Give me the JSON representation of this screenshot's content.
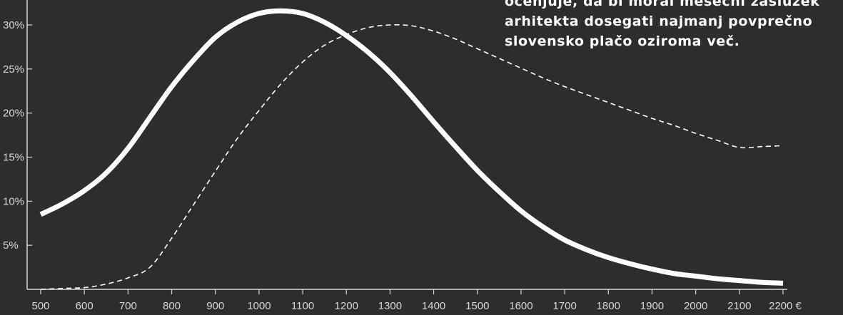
{
  "colors": {
    "background": "#2f2d2b",
    "foreground": "#ffffff",
    "axis": "#d9d7d3"
  },
  "annotation": {
    "lines": [
      "ocenjuje, da bi moral mesečni zaslužek",
      "arhitekta dosegati najmanj povprečno",
      "slovensko plačo oziroma več."
    ]
  },
  "chart_data": {
    "type": "line",
    "x_tick_labels": [
      "500",
      "600",
      "700",
      "800",
      "900",
      "1000",
      "1100",
      "1200",
      "1300",
      "1400",
      "1500",
      "1600",
      "1700",
      "1800",
      "1900",
      "2000",
      "2100",
      "2200 €"
    ],
    "y_tick_labels": [
      "5%",
      "10%",
      "15%",
      "20%",
      "25%",
      "30%"
    ],
    "xlim": [
      500,
      2200
    ],
    "ylim": [
      0,
      30
    ],
    "series": [
      {
        "style": "solid-thick",
        "x": [
          500,
          550,
          600,
          650,
          700,
          750,
          800,
          850,
          900,
          950,
          1000,
          1050,
          1100,
          1150,
          1200,
          1250,
          1300,
          1350,
          1400,
          1450,
          1500,
          1550,
          1600,
          1650,
          1700,
          1750,
          1800,
          1850,
          1900,
          1950,
          2000,
          2050,
          2100,
          2150,
          2200
        ],
        "y": [
          8.5,
          9.7,
          11.2,
          13.2,
          16.0,
          19.5,
          23.0,
          26.0,
          28.6,
          30.3,
          31.3,
          31.6,
          31.3,
          30.3,
          28.8,
          26.9,
          24.6,
          21.9,
          19.0,
          16.2,
          13.5,
          11.1,
          8.9,
          7.1,
          5.6,
          4.5,
          3.6,
          2.9,
          2.3,
          1.8,
          1.5,
          1.2,
          1.0,
          0.8,
          0.7
        ]
      },
      {
        "style": "dashed-thin",
        "x": [
          500,
          550,
          600,
          650,
          700,
          750,
          800,
          850,
          900,
          950,
          1000,
          1050,
          1100,
          1150,
          1200,
          1250,
          1300,
          1350,
          1400,
          1450,
          1500,
          1550,
          1600,
          1650,
          1700,
          1750,
          1800,
          1850,
          1900,
          1950,
          2000,
          2050,
          2100,
          2150,
          2200
        ],
        "y": [
          0.0,
          0.1,
          0.2,
          0.6,
          1.3,
          2.5,
          5.8,
          9.6,
          13.4,
          17.1,
          20.3,
          23.3,
          25.8,
          27.7,
          28.9,
          29.7,
          30.0,
          29.9,
          29.3,
          28.4,
          27.3,
          26.2,
          25.1,
          24.0,
          23.0,
          22.1,
          21.2,
          20.3,
          19.4,
          18.6,
          17.7,
          16.9,
          16.1,
          16.2,
          16.3
        ]
      }
    ],
    "grid": false,
    "legend": "none"
  }
}
